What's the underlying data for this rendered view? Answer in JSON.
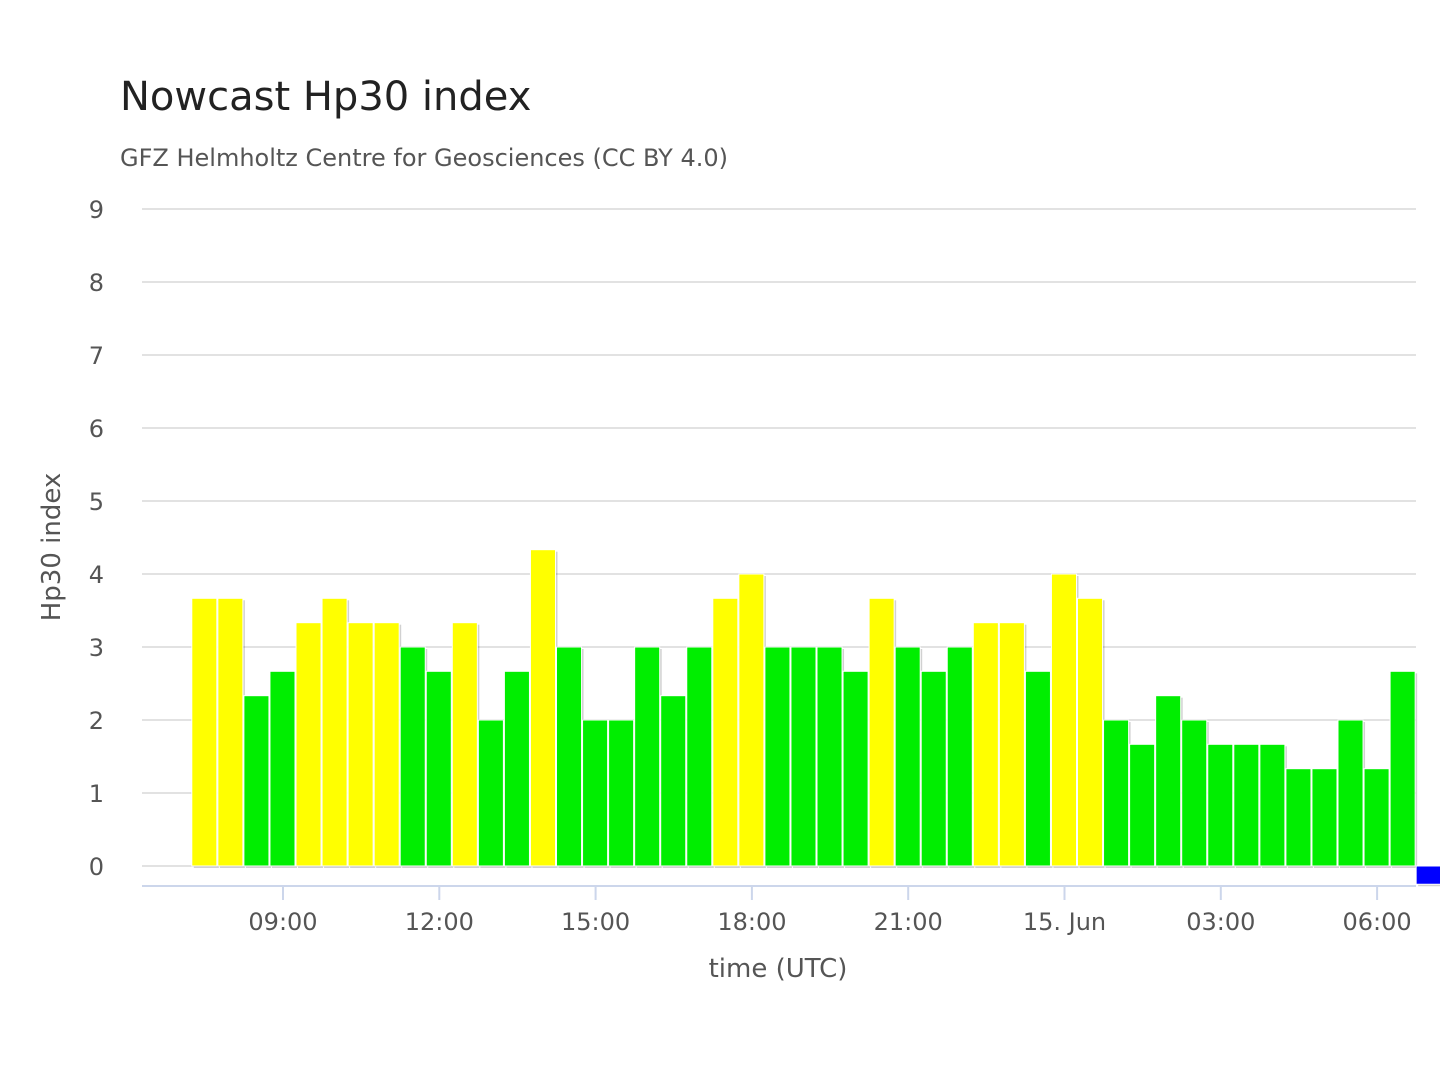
{
  "chart_data": {
    "type": "bar",
    "title": "Nowcast Hp30 index",
    "subtitle": "GFZ Helmholtz Centre for Geosciences (CC BY 4.0)",
    "xlabel": "time (UTC)",
    "ylabel": "Hp30 index",
    "ylim": [
      0,
      9
    ],
    "yticks": [
      0,
      1,
      2,
      3,
      4,
      5,
      6,
      7,
      8,
      9
    ],
    "xticks": [
      {
        "label": "09:00",
        "hour": 9
      },
      {
        "label": "12:00",
        "hour": 12
      },
      {
        "label": "15:00",
        "hour": 15
      },
      {
        "label": "18:00",
        "hour": 18
      },
      {
        "label": "21:00",
        "hour": 21
      },
      {
        "label": "15. Jun",
        "hour": 24
      },
      {
        "label": "03:00",
        "hour": 27
      },
      {
        "label": "06:00",
        "hour": 30
      }
    ],
    "interval": "30 min",
    "grid": true,
    "legend": "none",
    "colors": {
      "green": "#00ee00",
      "yellow": "#ffff00",
      "blue": "#0000ff"
    },
    "values": [
      3.667,
      3.667,
      2.333,
      2.667,
      3.333,
      3.667,
      3.333,
      3.333,
      3.0,
      2.667,
      3.333,
      2.0,
      2.667,
      4.333,
      3.0,
      2.0,
      2.0,
      3.0,
      2.333,
      3.0,
      3.667,
      4.0,
      3.0,
      3.0,
      3.0,
      2.667,
      3.667,
      3.0,
      2.667,
      3.0,
      3.333,
      3.333,
      2.667,
      4.0,
      3.667,
      2.0,
      1.667,
      2.333,
      2.0,
      1.667,
      1.667,
      1.667,
      1.333,
      1.333,
      2.0,
      1.333,
      2.667,
      -0.25
    ],
    "bar_colors": [
      "yellow",
      "yellow",
      "green",
      "green",
      "yellow",
      "yellow",
      "yellow",
      "yellow",
      "green",
      "green",
      "yellow",
      "green",
      "green",
      "yellow",
      "green",
      "green",
      "green",
      "green",
      "green",
      "green",
      "yellow",
      "yellow",
      "green",
      "green",
      "green",
      "green",
      "yellow",
      "green",
      "green",
      "green",
      "yellow",
      "yellow",
      "green",
      "yellow",
      "yellow",
      "green",
      "green",
      "green",
      "green",
      "green",
      "green",
      "green",
      "green",
      "green",
      "green",
      "green",
      "green",
      "blue"
    ]
  }
}
